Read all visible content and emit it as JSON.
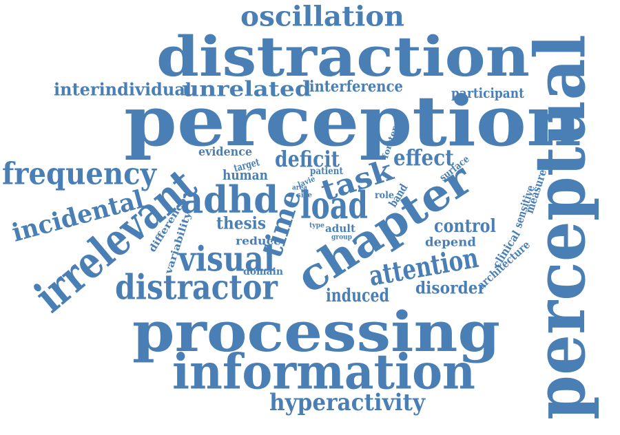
{
  "color": "#4a7fb5",
  "words": [
    {
      "key": "oscillation",
      "text": "oscillation"
    },
    {
      "key": "distraction",
      "text": "distraction"
    },
    {
      "key": "interindividual",
      "text": "interindividual"
    },
    {
      "key": "unrelated",
      "text": "unrelated"
    },
    {
      "key": "interference",
      "text": "interference"
    },
    {
      "key": "participant",
      "text": "participant"
    },
    {
      "key": "perception",
      "text": "perception"
    },
    {
      "key": "perceptual",
      "text": "perceptual"
    },
    {
      "key": "frequency",
      "text": "frequency"
    },
    {
      "key": "evidence",
      "text": "evidence"
    },
    {
      "key": "deficit",
      "text": "deficit"
    },
    {
      "key": "effect",
      "text": "effect"
    },
    {
      "key": "target",
      "text": "target"
    },
    {
      "key": "human",
      "text": "human"
    },
    {
      "key": "patient",
      "text": "patient"
    },
    {
      "key": "forster",
      "text": "forster"
    },
    {
      "key": "surface",
      "text": "surface"
    },
    {
      "key": "task",
      "text": "task"
    },
    {
      "key": "adhd",
      "text": "adhd"
    },
    {
      "key": "load",
      "text": "load"
    },
    {
      "key": "lavie",
      "text": "lavie"
    },
    {
      "key": "area",
      "text": "area"
    },
    {
      "key": "size",
      "text": "size"
    },
    {
      "key": "role",
      "text": "role"
    },
    {
      "key": "band",
      "text": "band"
    },
    {
      "key": "incidental",
      "text": "incidental"
    },
    {
      "key": "irrelevant",
      "text": "irrelevant"
    },
    {
      "key": "difference",
      "text": "difference"
    },
    {
      "key": "variability",
      "text": "variability"
    },
    {
      "key": "time",
      "text": "time"
    },
    {
      "key": "thesis",
      "text": "thesis"
    },
    {
      "key": "type",
      "text": "type"
    },
    {
      "key": "adult",
      "text": "adult"
    },
    {
      "key": "group",
      "text": "group"
    },
    {
      "key": "chapter",
      "text": "chapter"
    },
    {
      "key": "control",
      "text": "control"
    },
    {
      "key": "sensitive",
      "text": "sensitive"
    },
    {
      "key": "measure",
      "text": "measure"
    },
    {
      "key": "clinical",
      "text": "clinical"
    },
    {
      "key": "reduce",
      "text": "reduce"
    },
    {
      "key": "depend",
      "text": "depend"
    },
    {
      "key": "visual",
      "text": "visual"
    },
    {
      "key": "attention",
      "text": "attention"
    },
    {
      "key": "architecture",
      "text": "architecture"
    },
    {
      "key": "domain",
      "text": "domain"
    },
    {
      "key": "distractor",
      "text": "distractor"
    },
    {
      "key": "disorder",
      "text": "disorder"
    },
    {
      "key": "induced",
      "text": "induced"
    },
    {
      "key": "processing",
      "text": "processing"
    },
    {
      "key": "information",
      "text": "information"
    },
    {
      "key": "hyperactivity",
      "text": "hyperactivity"
    }
  ]
}
